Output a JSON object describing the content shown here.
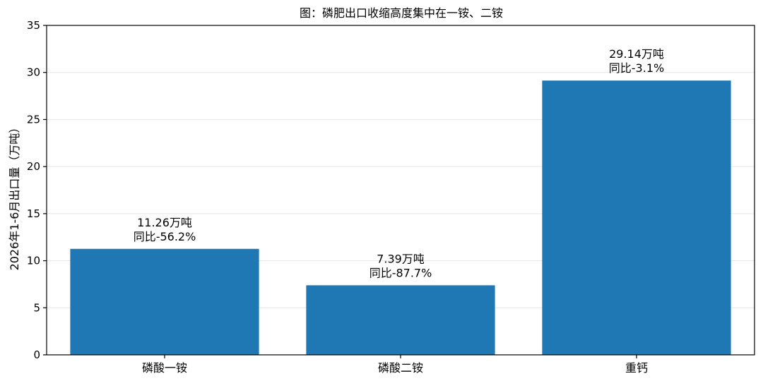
{
  "chart_data": {
    "type": "bar",
    "title": "图：磷肥出口收缩高度集中在一铵、二铵",
    "xlabel": "",
    "ylabel": "2026年1-6月出口量（万吨）",
    "categories": [
      "磷酸一铵",
      "磷酸二铵",
      "重钙"
    ],
    "values": [
      11.26,
      7.39,
      29.14
    ],
    "data_labels": [
      [
        "11.26万吨",
        "同比-56.2%"
      ],
      [
        "7.39万吨",
        "同比-87.7%"
      ],
      [
        "29.14万吨",
        "同比-3.1%"
      ]
    ],
    "ylim": [
      0,
      35
    ],
    "yticks": [
      0,
      5,
      10,
      15,
      20,
      25,
      30,
      35
    ],
    "grid": "horizontal",
    "legend": "none",
    "bar_color": "#1f77b4"
  }
}
